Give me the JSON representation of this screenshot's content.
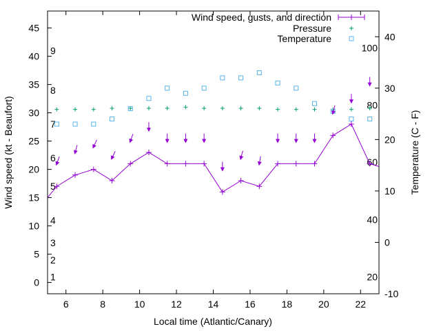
{
  "chart_data": {
    "type": "line",
    "xlabel": "Local time (Atlantic/Canary)",
    "ylabel": "Wind speed (kt - Beaufort)",
    "y2label": "Temperature (C - F)",
    "xlim": [
      5,
      23
    ],
    "ylim": [
      -2,
      48
    ],
    "y2lim": [
      -10,
      45
    ],
    "x_ticks": [
      6,
      8,
      10,
      12,
      14,
      16,
      18,
      20,
      22
    ],
    "y_ticks": [
      0,
      5,
      10,
      15,
      20,
      25,
      30,
      35,
      40,
      45
    ],
    "y2_ticks": [
      -10,
      0,
      10,
      20,
      30,
      40
    ],
    "beaufort_labels": [
      {
        "label": "1",
        "y": 1
      },
      {
        "label": "2",
        "y": 4
      },
      {
        "label": "3",
        "y": 7
      },
      {
        "label": "4",
        "y": 11
      },
      {
        "label": "5",
        "y": 17
      },
      {
        "label": "6",
        "y": 22
      },
      {
        "label": "7",
        "y": 28
      },
      {
        "label": "8",
        "y": 34
      },
      {
        "label": "9",
        "y": 41
      }
    ],
    "fahrenheit_labels": [
      {
        "label": "20",
        "y2": -6.7
      },
      {
        "label": "40",
        "y2": 4.4
      },
      {
        "label": "60",
        "y2": 15.6
      },
      {
        "label": "80",
        "y2": 26.7
      },
      {
        "label": "100",
        "y2": 37.8
      }
    ],
    "grid": false,
    "legend_position": "top-right",
    "series": [
      {
        "name": "Wind speed, gusts, and direction",
        "color": "#9400d3",
        "marker": "plus-line",
        "x": [
          5.0,
          5.5,
          6.5,
          7.5,
          8.5,
          9.5,
          10.5,
          11.5,
          12.5,
          13.5,
          14.5,
          15.5,
          16.5,
          17.5,
          18.5,
          19.5,
          20.5,
          21.5,
          22.5,
          23.0
        ],
        "values": [
          15,
          17,
          19,
          20,
          18,
          21,
          23,
          21,
          21,
          21,
          16,
          18,
          17,
          21,
          21,
          21,
          26,
          28,
          21,
          20.5
        ]
      },
      {
        "name": "Pressure",
        "color": "#009e73",
        "marker": "plus",
        "x": [
          5.5,
          6.5,
          7.5,
          8.5,
          9.5,
          10.5,
          11.5,
          12.5,
          13.5,
          14.5,
          15.5,
          16.5,
          17.5,
          18.5,
          19.5,
          20.5,
          21.5,
          22.5
        ],
        "values": [
          30.6,
          30.6,
          30.6,
          30.8,
          30.8,
          30.8,
          30.8,
          31.0,
          30.8,
          30.8,
          30.8,
          30.8,
          30.6,
          30.6,
          30.6,
          30.6,
          30.6,
          30.8
        ]
      },
      {
        "name": "Temperature",
        "color": "#56b4e9",
        "marker": "square",
        "axis": "y2",
        "x": [
          5.5,
          6.5,
          7.5,
          8.5,
          9.5,
          10.5,
          11.5,
          12.5,
          13.5,
          14.5,
          15.5,
          16.5,
          17.5,
          18.5,
          19.5,
          20.5,
          21.5,
          22.5
        ],
        "values": [
          23,
          23,
          23,
          24,
          26,
          28,
          30,
          29,
          30,
          32,
          32,
          33,
          31,
          30,
          27,
          25.5,
          24,
          24
        ]
      }
    ],
    "gusts": [
      {
        "x": 5.5,
        "y": 21,
        "angle": 20
      },
      {
        "x": 6.5,
        "y": 23,
        "angle": 15
      },
      {
        "x": 7.5,
        "y": 24,
        "angle": 25
      },
      {
        "x": 8.5,
        "y": 22,
        "angle": 25
      },
      {
        "x": 9.5,
        "y": 25,
        "angle": 20
      },
      {
        "x": 10.5,
        "y": 27,
        "angle": 0
      },
      {
        "x": 11.5,
        "y": 25,
        "angle": 0
      },
      {
        "x": 12.5,
        "y": 25,
        "angle": 0
      },
      {
        "x": 13.5,
        "y": 25,
        "angle": 0
      },
      {
        "x": 14.5,
        "y": 20,
        "angle": 0
      },
      {
        "x": 15.5,
        "y": 22,
        "angle": 15
      },
      {
        "x": 16.5,
        "y": 21,
        "angle": 10
      },
      {
        "x": 17.5,
        "y": 25,
        "angle": 0
      },
      {
        "x": 18.5,
        "y": 25,
        "angle": 0
      },
      {
        "x": 19.5,
        "y": 25,
        "angle": 0
      },
      {
        "x": 20.5,
        "y": 30,
        "angle": 15
      },
      {
        "x": 21.5,
        "y": 32,
        "angle": 0
      },
      {
        "x": 22.5,
        "y": 35,
        "angle": 0
      }
    ]
  }
}
